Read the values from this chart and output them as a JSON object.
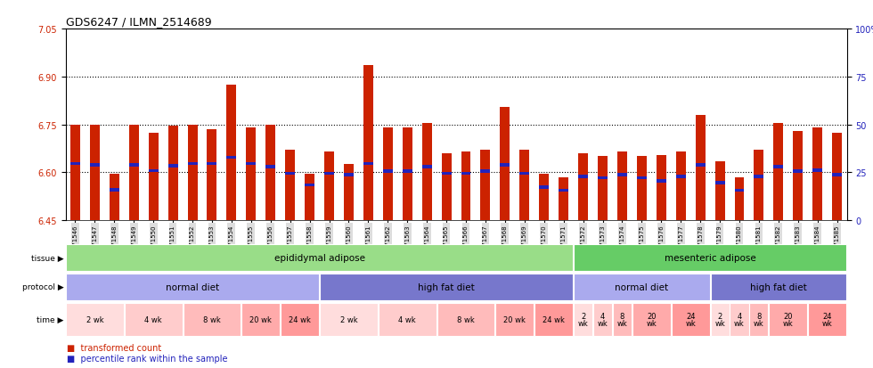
{
  "title": "GDS6247 / ILMN_2514689",
  "samples": [
    "GSM971546",
    "GSM971547",
    "GSM971548",
    "GSM971549",
    "GSM971550",
    "GSM971551",
    "GSM971552",
    "GSM971553",
    "GSM971554",
    "GSM971555",
    "GSM971556",
    "GSM971557",
    "GSM971558",
    "GSM971559",
    "GSM971560",
    "GSM971561",
    "GSM971562",
    "GSM971563",
    "GSM971564",
    "GSM971565",
    "GSM971566",
    "GSM971567",
    "GSM971568",
    "GSM971569",
    "GSM971570",
    "GSM971571",
    "GSM971572",
    "GSM971573",
    "GSM971574",
    "GSM971575",
    "GSM971576",
    "GSM971577",
    "GSM971578",
    "GSM971579",
    "GSM971580",
    "GSM971581",
    "GSM971582",
    "GSM971583",
    "GSM971584",
    "GSM971585"
  ],
  "bar_values": [
    6.75,
    6.75,
    6.595,
    6.75,
    6.725,
    6.745,
    6.75,
    6.735,
    6.875,
    6.74,
    6.75,
    6.67,
    6.595,
    6.665,
    6.625,
    6.935,
    6.74,
    6.74,
    6.755,
    6.66,
    6.665,
    6.67,
    6.805,
    6.67,
    6.595,
    6.585,
    6.66,
    6.65,
    6.665,
    6.65,
    6.655,
    6.665,
    6.78,
    6.635,
    6.585,
    6.67,
    6.755,
    6.73,
    6.74,
    6.725
  ],
  "percentile_positions": [
    6.622,
    6.618,
    6.54,
    6.618,
    6.6,
    6.615,
    6.622,
    6.622,
    6.642,
    6.622,
    6.612,
    6.592,
    6.555,
    6.592,
    6.588,
    6.622,
    6.598,
    6.598,
    6.612,
    6.592,
    6.592,
    6.598,
    6.618,
    6.592,
    6.548,
    6.538,
    6.582,
    6.578,
    6.588,
    6.578,
    6.568,
    6.582,
    6.618,
    6.562,
    6.538,
    6.582,
    6.612,
    6.598,
    6.602,
    6.588
  ],
  "ylim_left": [
    6.45,
    7.05
  ],
  "ylim_right": [
    0,
    100
  ],
  "yticks_left": [
    6.45,
    6.6,
    6.75,
    6.9,
    7.05
  ],
  "yticks_right": [
    0,
    25,
    50,
    75,
    100
  ],
  "bar_color": "#cc2200",
  "percentile_color": "#2222bb",
  "bg_color": "#ffffff",
  "plot_bg": "#ffffff",
  "xticklabel_bg": "#dddddd",
  "tissue_regions": [
    {
      "label": "epididymal adipose",
      "start": 0,
      "end": 26,
      "color": "#99dd88"
    },
    {
      "label": "mesenteric adipose",
      "start": 26,
      "end": 40,
      "color": "#66cc66"
    }
  ],
  "protocol_regions": [
    {
      "label": "normal diet",
      "start": 0,
      "end": 13,
      "color": "#aaaaee"
    },
    {
      "label": "high fat diet",
      "start": 13,
      "end": 26,
      "color": "#7777cc"
    },
    {
      "label": "normal diet",
      "start": 26,
      "end": 33,
      "color": "#aaaaee"
    },
    {
      "label": "high fat diet",
      "start": 33,
      "end": 40,
      "color": "#7777cc"
    }
  ],
  "time_regions": [
    {
      "label": "2 wk",
      "start": 0,
      "end": 3,
      "color": "#ffdddd"
    },
    {
      "label": "4 wk",
      "start": 3,
      "end": 6,
      "color": "#ffcccc"
    },
    {
      "label": "8 wk",
      "start": 6,
      "end": 9,
      "color": "#ffbbbb"
    },
    {
      "label": "20 wk",
      "start": 9,
      "end": 11,
      "color": "#ffaaaa"
    },
    {
      "label": "24 wk",
      "start": 11,
      "end": 13,
      "color": "#ff9999"
    },
    {
      "label": "2 wk",
      "start": 13,
      "end": 16,
      "color": "#ffdddd"
    },
    {
      "label": "4 wk",
      "start": 16,
      "end": 19,
      "color": "#ffcccc"
    },
    {
      "label": "8 wk",
      "start": 19,
      "end": 22,
      "color": "#ffbbbb"
    },
    {
      "label": "20 wk",
      "start": 22,
      "end": 24,
      "color": "#ffaaaa"
    },
    {
      "label": "24 wk",
      "start": 24,
      "end": 26,
      "color": "#ff9999"
    },
    {
      "label": "2\nwk",
      "start": 26,
      "end": 27,
      "color": "#ffdddd"
    },
    {
      "label": "4\nwk",
      "start": 27,
      "end": 28,
      "color": "#ffcccc"
    },
    {
      "label": "8\nwk",
      "start": 28,
      "end": 29,
      "color": "#ffbbbb"
    },
    {
      "label": "20\nwk",
      "start": 29,
      "end": 31,
      "color": "#ffaaaa"
    },
    {
      "label": "24\nwk",
      "start": 31,
      "end": 33,
      "color": "#ff9999"
    },
    {
      "label": "2\nwk",
      "start": 33,
      "end": 34,
      "color": "#ffdddd"
    },
    {
      "label": "4\nwk",
      "start": 34,
      "end": 35,
      "color": "#ffcccc"
    },
    {
      "label": "8\nwk",
      "start": 35,
      "end": 36,
      "color": "#ffbbbb"
    },
    {
      "label": "20\nwk",
      "start": 36,
      "end": 38,
      "color": "#ffaaaa"
    },
    {
      "label": "24\nwk",
      "start": 38,
      "end": 40,
      "color": "#ff9999"
    }
  ],
  "row_labels": [
    "tissue",
    "protocol",
    "time"
  ],
  "legend_items": [
    {
      "label": "transformed count",
      "color": "#cc2200"
    },
    {
      "label": "percentile rank within the sample",
      "color": "#2222bb"
    }
  ]
}
